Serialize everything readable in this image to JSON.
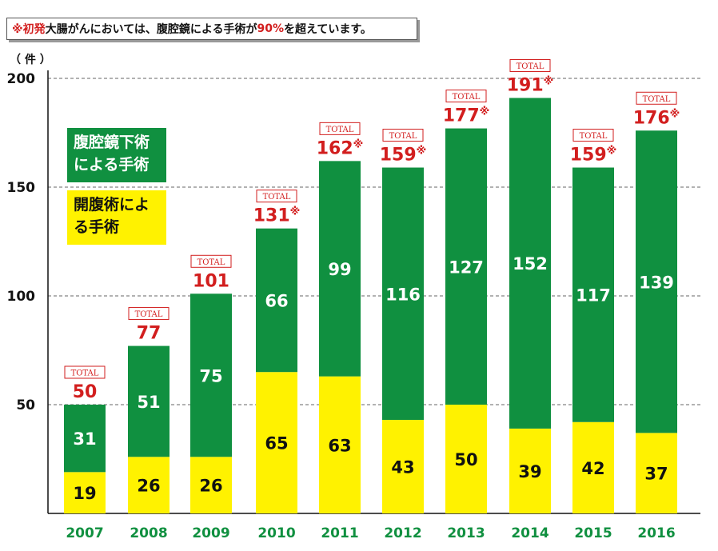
{
  "note": {
    "prefix": "※初発",
    "middle": "大腸がんにおいては、腹腔鏡による手術が ",
    "percent": "90%",
    "suffix": " を超えています。"
  },
  "unit_label": "（ 件 ）",
  "legend": {
    "laparoscopic": "腹腔鏡下術による手術",
    "open": "開腹術による手術"
  },
  "total_box_label": "TOTAL",
  "colors": {
    "laparoscopic": "#109040",
    "open": "#fff200",
    "total_text": "#d21e1e",
    "year_text": "#109040"
  },
  "chart_data": {
    "type": "bar",
    "stacked": true,
    "categories": [
      "2007",
      "2008",
      "2009",
      "2010",
      "2011",
      "2012",
      "2013",
      "2014",
      "2015",
      "2016"
    ],
    "series": [
      {
        "name": "開腹術による手術",
        "values": [
          19,
          26,
          26,
          65,
          63,
          43,
          50,
          39,
          42,
          37
        ]
      },
      {
        "name": "腹腔鏡下術による手術",
        "values": [
          31,
          51,
          75,
          66,
          99,
          116,
          127,
          152,
          117,
          139
        ]
      }
    ],
    "totals": [
      50,
      77,
      101,
      131,
      162,
      159,
      177,
      191,
      159,
      176
    ],
    "total_marks": [
      "",
      "",
      "",
      "※",
      "※",
      "※",
      "※",
      "※",
      "※",
      "※"
    ],
    "yticks": [
      50,
      100,
      150,
      200
    ],
    "ylim": [
      0,
      200
    ],
    "grid": true
  }
}
